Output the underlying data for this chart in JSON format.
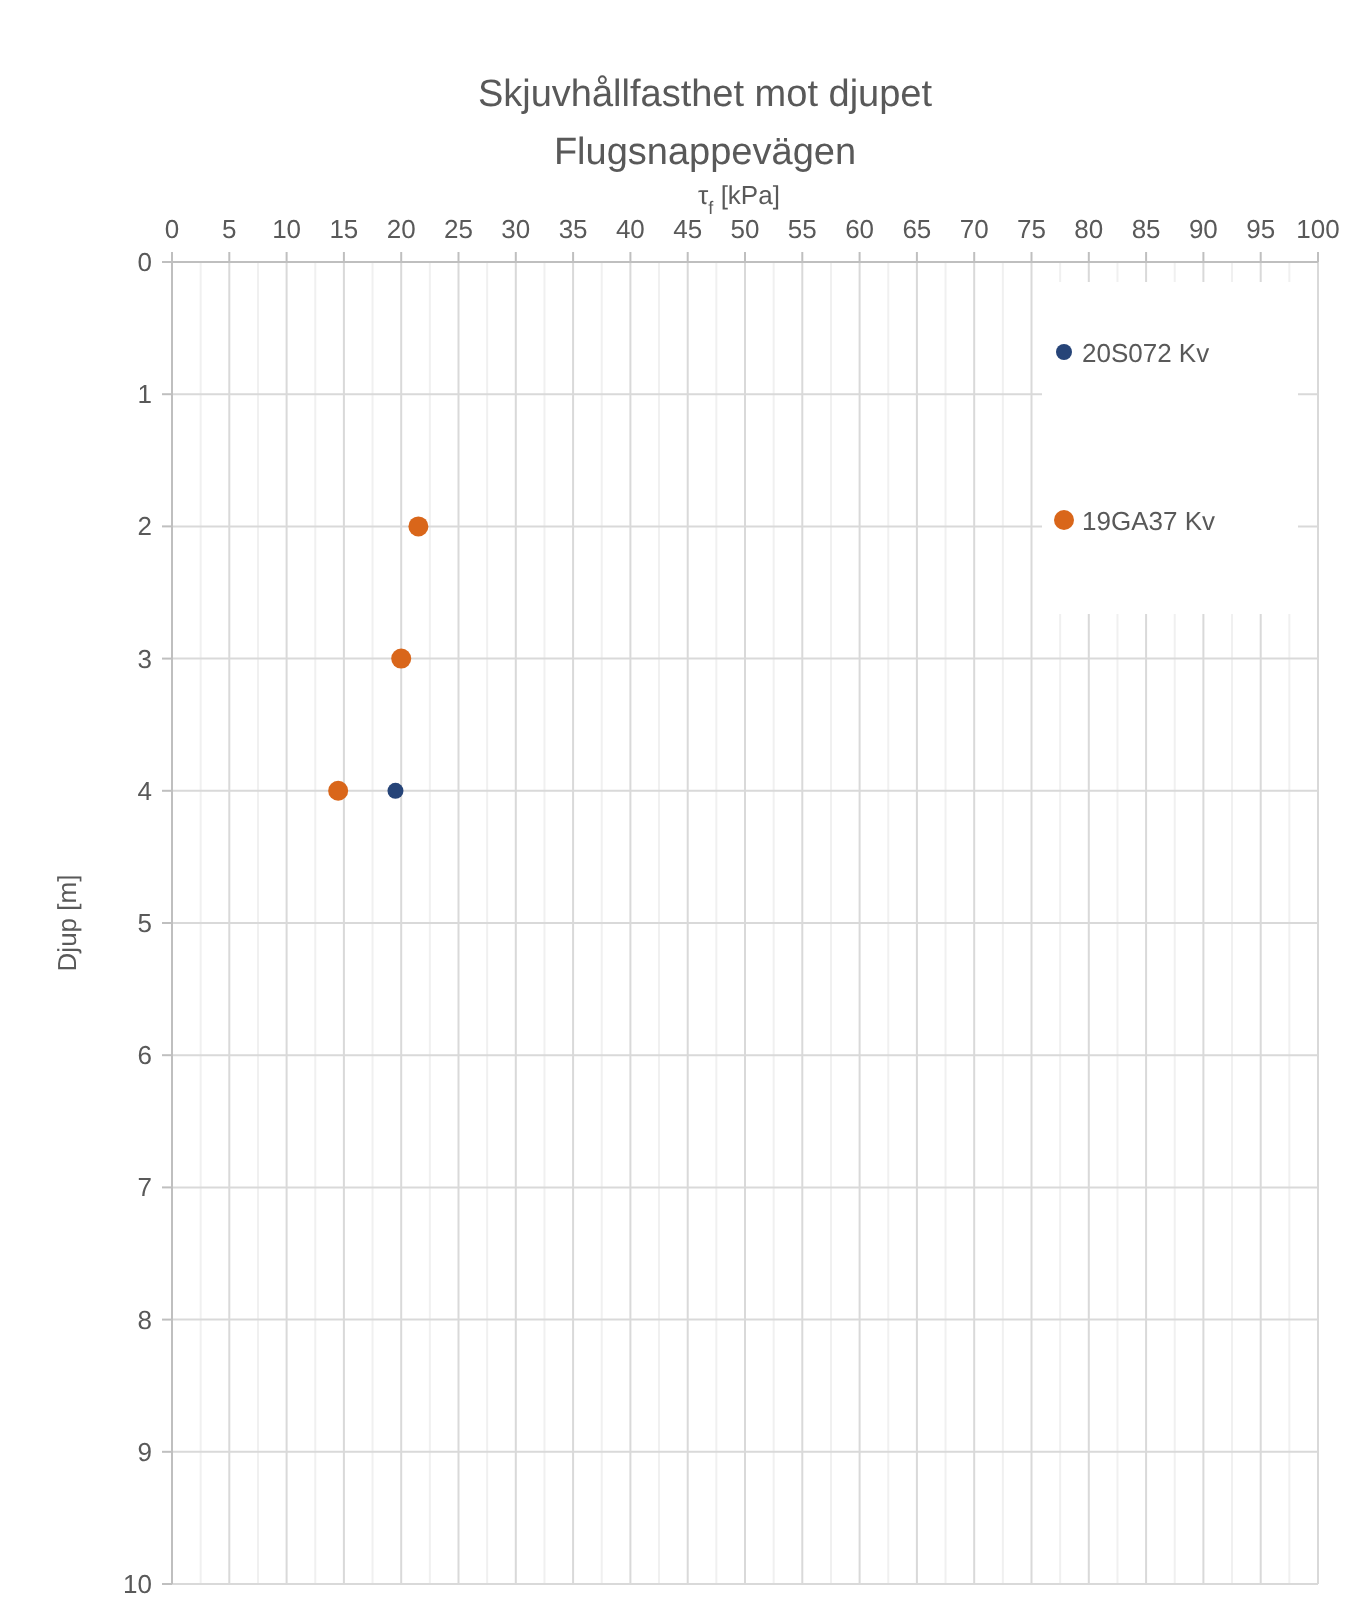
{
  "chart_data": {
    "type": "scatter",
    "title": "Skjuvhållfasthet mot djupet",
    "subtitle": "Flugsnappevägen",
    "xlabel": "τ$_{f}$ [kPa]",
    "ylabel": "Djup [m]",
    "xlim": [
      0,
      100
    ],
    "xticks": [
      0,
      {
        "value": 2.5,
        "label": null
      },
      5,
      {
        "value": 7.5,
        "label": null
      },
      10,
      {
        "value": 12.5,
        "label": null
      },
      15,
      {
        "value": 17.5,
        "label": null
      },
      20,
      {
        "value": 22.5,
        "label": null
      },
      25,
      {
        "value": 27.5,
        "label": null
      },
      30,
      {
        "value": 32.5,
        "label": null
      },
      35,
      {
        "value": 37.5,
        "label": null
      },
      40,
      {
        "value": 42.5,
        "label": null
      },
      45,
      {
        "value": 47.5,
        "label": null
      },
      50,
      {
        "value": 52.5,
        "label": null
      },
      55,
      {
        "value": 57.5,
        "label": null
      },
      60,
      {
        "value": 62.5,
        "label": null
      },
      65,
      {
        "value": 67.5,
        "label": null
      },
      70,
      {
        "value": 72.5,
        "label": null
      },
      75,
      {
        "value": 77.5,
        "label": null
      },
      80,
      {
        "value": 82.5,
        "label": null
      },
      85,
      {
        "value": 87.5,
        "label": null
      },
      90,
      {
        "value": 92.5,
        "label": null
      },
      95,
      {
        "value": 97.5,
        "label": null
      },
      100
    ],
    "ylim": [
      10,
      0
    ],
    "yticks": [
      0,
      1,
      2,
      3,
      4,
      5,
      6,
      7,
      8,
      9,
      10
    ],
    "grid": true,
    "legend": "top right",
    "marker": "circle",
    "series": [
      {
        "name": "20S072 Kv",
        "color": "#264478",
        "x": [
          19.5
        ],
        "values": [
          4
        ]
      },
      {
        "name": "19GA37 Kv",
        "color": "#d9661a",
        "x": [
          21.5,
          20,
          14.5
        ],
        "values": [
          2,
          3,
          4
        ]
      }
    ]
  }
}
